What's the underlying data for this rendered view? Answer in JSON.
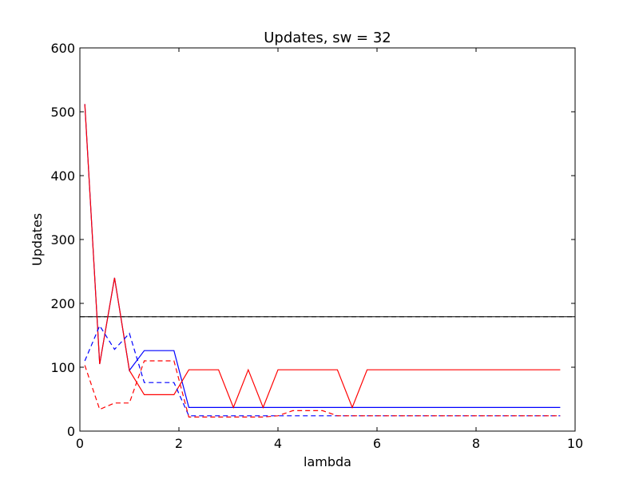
{
  "chart_data": {
    "type": "line",
    "title": "Updates, sw = 32",
    "xlabel": "lambda",
    "ylabel": "Updates",
    "xlim": [
      0,
      10
    ],
    "ylim": [
      0,
      600
    ],
    "xticks": [
      0,
      2,
      4,
      6,
      8,
      10
    ],
    "yticks": [
      0,
      100,
      200,
      300,
      400,
      500,
      600
    ],
    "grid": false,
    "x": [
      0.1,
      0.4,
      0.7,
      1.0,
      1.3,
      1.6,
      1.9,
      2.2,
      2.5,
      2.8,
      3.1,
      3.4,
      3.7,
      4.0,
      4.3,
      4.6,
      4.9,
      5.2,
      5.5,
      5.8,
      6.1,
      6.4,
      6.7,
      7.0,
      7.3,
      7.6,
      7.9,
      8.2,
      8.5,
      8.8,
      9.1,
      9.4,
      9.7
    ],
    "series": [
      {
        "color": "#0000ff",
        "style": "solid",
        "values": [
          512,
          105,
          240,
          95,
          126,
          126,
          126,
          37,
          37,
          37,
          37,
          37,
          37,
          37,
          37,
          37,
          37,
          37,
          37,
          37,
          37,
          37,
          37,
          37,
          37,
          37,
          37,
          37,
          37,
          37,
          37,
          37,
          37
        ]
      },
      {
        "color": "#ff0000",
        "style": "solid",
        "values": [
          512,
          105,
          240,
          95,
          57,
          57,
          57,
          96,
          96,
          96,
          37,
          96,
          37,
          96,
          96,
          96,
          96,
          96,
          37,
          96,
          96,
          96,
          96,
          96,
          96,
          96,
          96,
          96,
          96,
          96,
          96,
          96,
          96
        ]
      },
      {
        "color": "#0000ff",
        "style": "dashed",
        "values": [
          110,
          165,
          128,
          153,
          76,
          76,
          76,
          24,
          24,
          24,
          24,
          24,
          24,
          24,
          24,
          24,
          24,
          24,
          24,
          24,
          24,
          24,
          24,
          24,
          24,
          24,
          24,
          24,
          24,
          24,
          24,
          24,
          24
        ]
      },
      {
        "color": "#ff0000",
        "style": "dashed",
        "values": [
          103,
          34,
          44,
          44,
          110,
          110,
          110,
          22,
          22,
          22,
          22,
          22,
          22,
          24,
          32,
          32,
          32,
          24,
          24,
          24,
          24,
          24,
          24,
          24,
          24,
          24,
          24,
          24,
          24,
          24,
          24,
          24,
          24
        ]
      }
    ],
    "hlines": [
      {
        "y": 179,
        "color": "#000000",
        "style": "solid"
      },
      {
        "y": 179,
        "color": "#000000",
        "style": "dashed"
      }
    ]
  }
}
